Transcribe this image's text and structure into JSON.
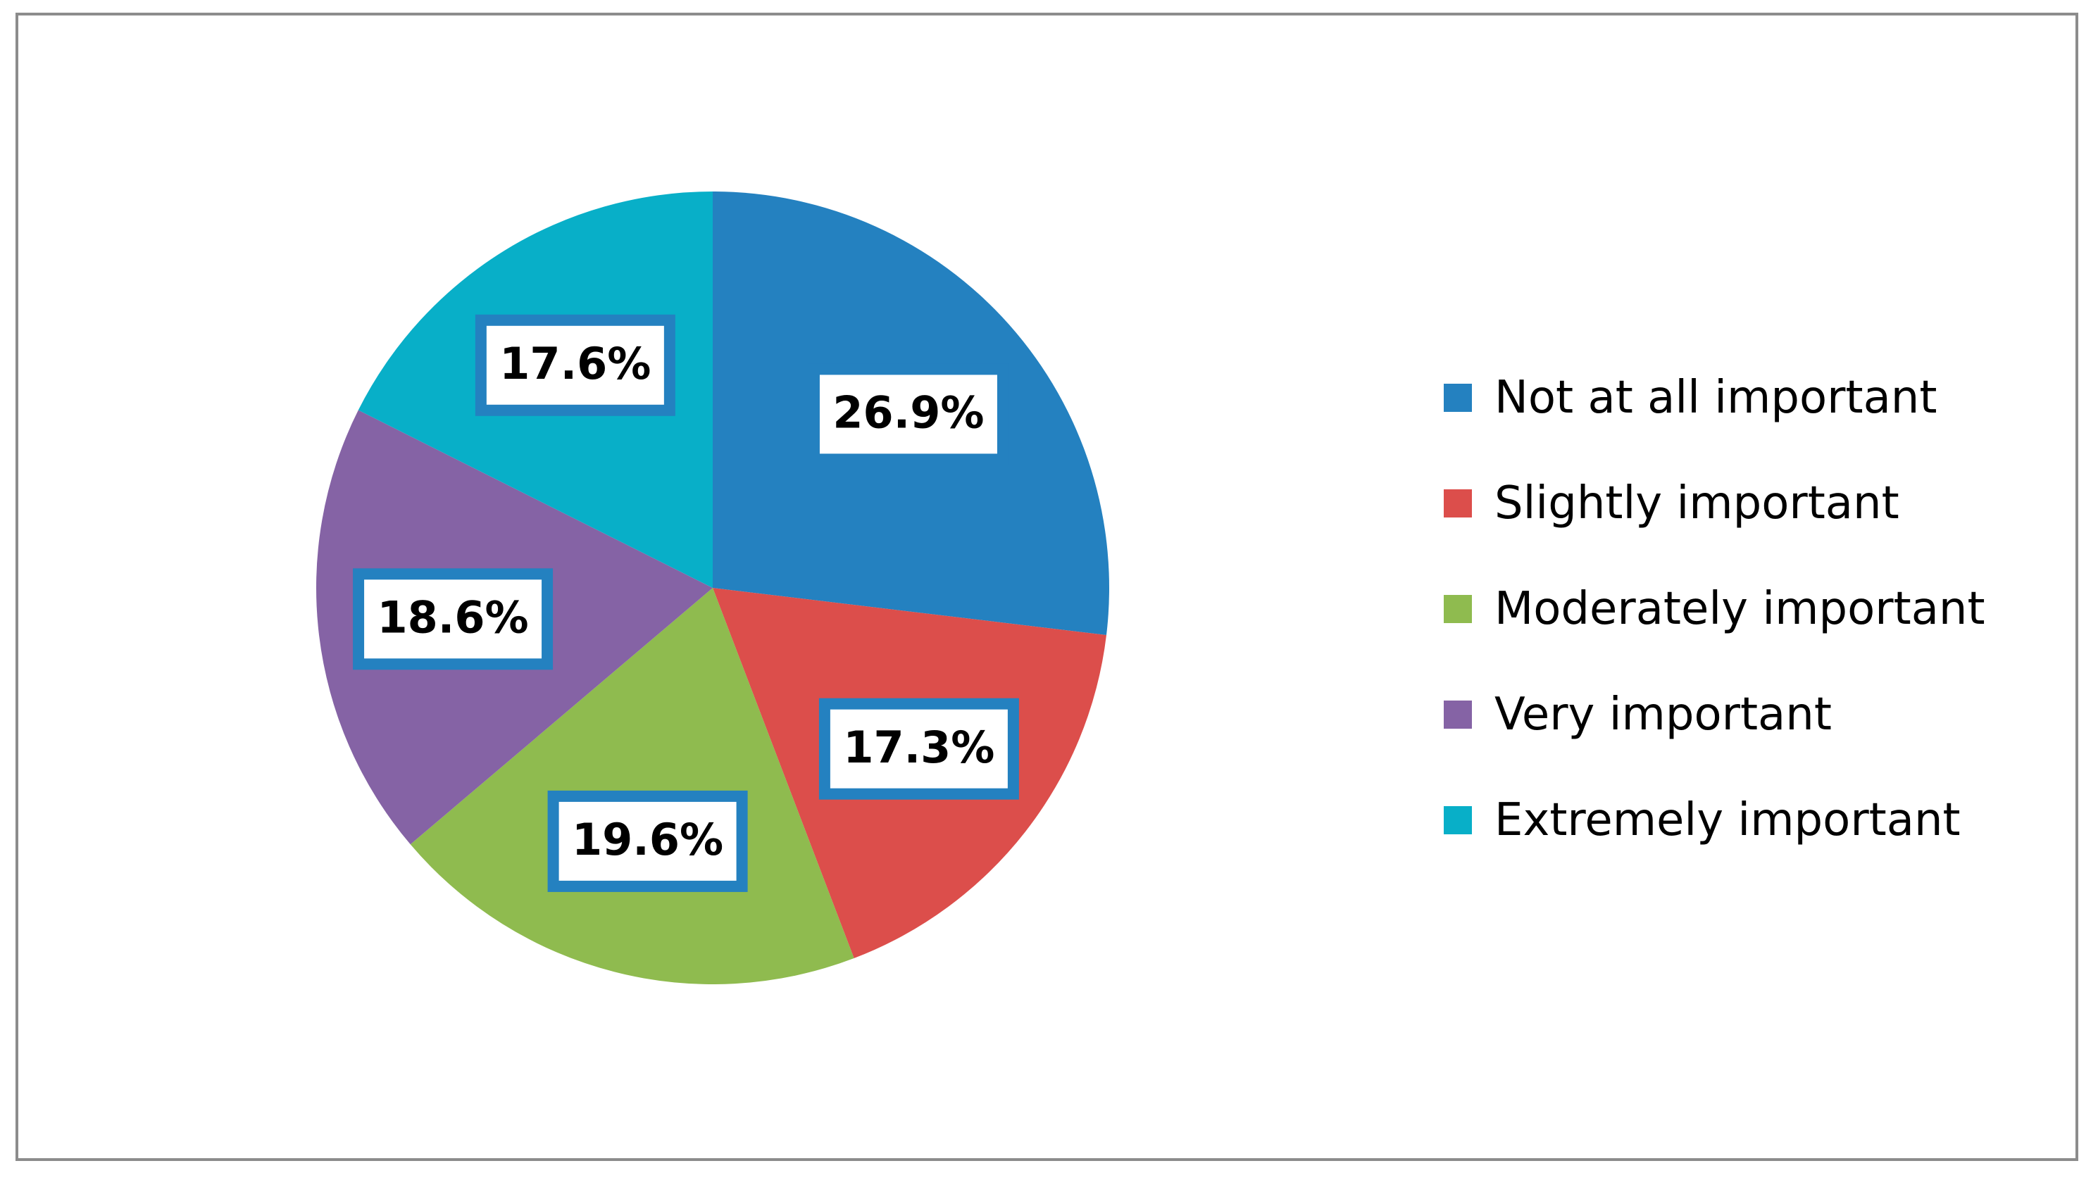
{
  "chart_data": {
    "type": "pie",
    "slices": [
      {
        "label": "Not at all important",
        "value": 26.9,
        "display": "26.9%",
        "color": "#2481c0"
      },
      {
        "label": "Slightly important",
        "value": 17.3,
        "display": "17.3%",
        "color": "#dc4e4b"
      },
      {
        "label": "Moderately important",
        "value": 19.6,
        "display": "19.6%",
        "color": "#8fbb4f"
      },
      {
        "label": "Very important",
        "value": 18.6,
        "display": "18.6%",
        "color": "#8563a5"
      },
      {
        "label": "Extremely important",
        "value": 17.6,
        "display": "17.6%",
        "color": "#08afc8"
      }
    ],
    "start_angle": "12 o'clock",
    "direction": "clockwise",
    "legend_position": "right",
    "data_label_box_border_color": "#2481c0"
  }
}
